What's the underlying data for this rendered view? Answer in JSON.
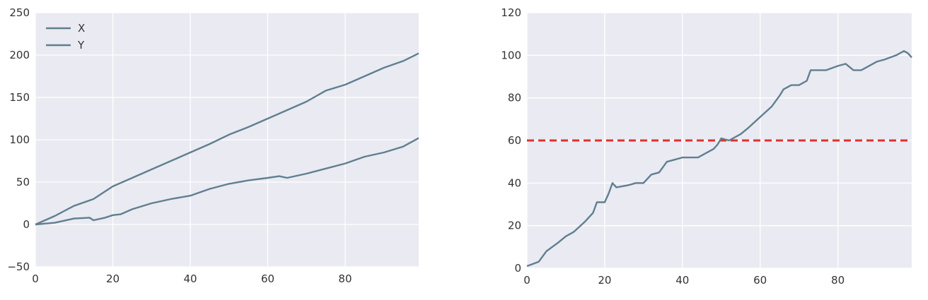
{
  "chart_data": [
    {
      "type": "line",
      "title": "",
      "xlabel": "",
      "ylabel": "",
      "xlim": [
        0,
        99
      ],
      "ylim": [
        -50,
        250
      ],
      "xticks": [
        0,
        20,
        40,
        60,
        80
      ],
      "yticks": [
        -50,
        0,
        50,
        100,
        150,
        200,
        250
      ],
      "ytick_labels": [
        "−50",
        "0",
        "50",
        "100",
        "150",
        "200",
        "250"
      ],
      "grid": true,
      "legend_position": "top-left",
      "series": [
        {
          "name": "X",
          "color": "#5f7f8f",
          "points": [
            [
              0,
              0
            ],
            [
              5,
              10
            ],
            [
              10,
              22
            ],
            [
              15,
              30
            ],
            [
              20,
              45
            ],
            [
              25,
              55
            ],
            [
              30,
              65
            ],
            [
              35,
              75
            ],
            [
              40,
              85
            ],
            [
              45,
              95
            ],
            [
              50,
              106
            ],
            [
              55,
              115
            ],
            [
              60,
              125
            ],
            [
              65,
              135
            ],
            [
              70,
              145
            ],
            [
              75,
              158
            ],
            [
              80,
              165
            ],
            [
              85,
              175
            ],
            [
              90,
              185
            ],
            [
              95,
              193
            ],
            [
              99,
              202
            ]
          ]
        },
        {
          "name": "Y",
          "color": "#5f7f8f",
          "points": [
            [
              0,
              0
            ],
            [
              5,
              2
            ],
            [
              10,
              7
            ],
            [
              14,
              8
            ],
            [
              15,
              5
            ],
            [
              18,
              8
            ],
            [
              20,
              11
            ],
            [
              22,
              12
            ],
            [
              25,
              18
            ],
            [
              30,
              25
            ],
            [
              35,
              30
            ],
            [
              40,
              34
            ],
            [
              45,
              42
            ],
            [
              50,
              48
            ],
            [
              55,
              52
            ],
            [
              60,
              55
            ],
            [
              63,
              57
            ],
            [
              65,
              55
            ],
            [
              70,
              60
            ],
            [
              75,
              66
            ],
            [
              80,
              72
            ],
            [
              85,
              80
            ],
            [
              90,
              85
            ],
            [
              95,
              92
            ],
            [
              99,
              102
            ]
          ]
        }
      ]
    },
    {
      "type": "line",
      "title": "",
      "xlabel": "",
      "ylabel": "",
      "xlim": [
        0,
        99
      ],
      "ylim": [
        0,
        120
      ],
      "xticks": [
        0,
        20,
        40,
        60,
        80
      ],
      "yticks": [
        0,
        20,
        40,
        60,
        80,
        100,
        120
      ],
      "ytick_labels": [
        "0",
        "20",
        "40",
        "60",
        "80",
        "100",
        "120"
      ],
      "grid": true,
      "reference_line": {
        "y": 60,
        "color": "#e03030",
        "style": "dashed"
      },
      "series": [
        {
          "color": "#5f7f8f",
          "points": [
            [
              0,
              1
            ],
            [
              3,
              3
            ],
            [
              5,
              8
            ],
            [
              8,
              12
            ],
            [
              10,
              15
            ],
            [
              12,
              17
            ],
            [
              15,
              22
            ],
            [
              17,
              26
            ],
            [
              18,
              31
            ],
            [
              20,
              31
            ],
            [
              21,
              35
            ],
            [
              22,
              40
            ],
            [
              23,
              38
            ],
            [
              26,
              39
            ],
            [
              28,
              40
            ],
            [
              30,
              40
            ],
            [
              32,
              44
            ],
            [
              34,
              45
            ],
            [
              36,
              50
            ],
            [
              38,
              51
            ],
            [
              40,
              52
            ],
            [
              42,
              52
            ],
            [
              44,
              52
            ],
            [
              46,
              54
            ],
            [
              48,
              56
            ],
            [
              49,
              58
            ],
            [
              50,
              61
            ],
            [
              52,
              60
            ],
            [
              55,
              63
            ],
            [
              57,
              66
            ],
            [
              60,
              71
            ],
            [
              63,
              76
            ],
            [
              65,
              81
            ],
            [
              66,
              84
            ],
            [
              68,
              86
            ],
            [
              70,
              86
            ],
            [
              72,
              88
            ],
            [
              73,
              93
            ],
            [
              75,
              93
            ],
            [
              77,
              93
            ],
            [
              80,
              95
            ],
            [
              82,
              96
            ],
            [
              84,
              93
            ],
            [
              86,
              93
            ],
            [
              88,
              95
            ],
            [
              90,
              97
            ],
            [
              92,
              98
            ],
            [
              95,
              100
            ],
            [
              97,
              102
            ],
            [
              98,
              101
            ],
            [
              99,
              99
            ]
          ]
        }
      ]
    }
  ]
}
